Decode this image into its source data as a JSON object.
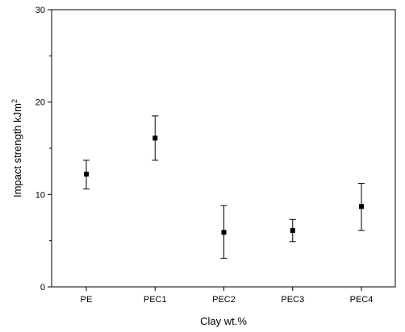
{
  "chart_data": {
    "type": "scatter",
    "title": "",
    "xlabel": "Clay  wt.%",
    "ylabel": "Impact strength kJm",
    "ylabel_superscript": "2",
    "categories": [
      "PE",
      "PEC1",
      "PEC2",
      "PEC3",
      "PEC4"
    ],
    "series": [
      {
        "values": [
          12.2,
          16.1,
          5.9,
          6.1,
          8.7
        ],
        "error_low": [
          10.6,
          13.7,
          3.1,
          4.9,
          6.1
        ],
        "error_high": [
          13.7,
          18.5,
          8.8,
          7.3,
          11.2
        ]
      }
    ],
    "ylim": [
      0,
      30
    ],
    "yticks": [
      0,
      10,
      20,
      30
    ],
    "grid": false,
    "legend": "none",
    "colors": {
      "marker": "#000000",
      "axis": "#000000"
    }
  }
}
